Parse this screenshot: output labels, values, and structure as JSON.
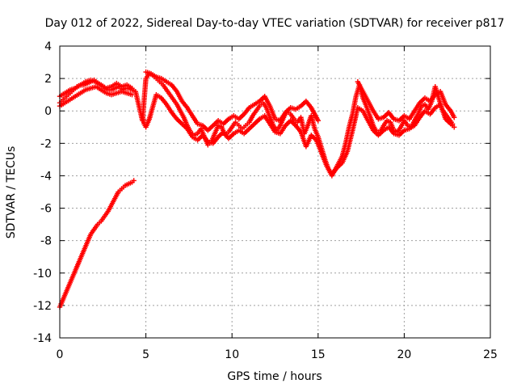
{
  "chart_data": {
    "type": "scatter",
    "title": "Day 012 of 2022, Sidereal Day-to-day VTEC variation (SDTVAR) for receiver p817",
    "xlabel": "GPS time / hours",
    "ylabel": "SDTVAR / TECUs",
    "xlim": [
      0,
      25
    ],
    "ylim": [
      -14,
      4
    ],
    "xticks": [
      "0",
      "5",
      "10",
      "15",
      "20",
      "25"
    ],
    "yticks": [
      "4",
      "2",
      "0",
      "-2",
      "-4",
      "-6",
      "-8",
      "-10",
      "-12",
      "-14"
    ],
    "grid": true,
    "marker": "+",
    "color": "#ff0000",
    "series": [
      {
        "name": "descending track",
        "points": [
          [
            0.0,
            -12.1
          ],
          [
            0.2,
            -11.6
          ],
          [
            0.4,
            -11.1
          ],
          [
            0.6,
            -10.6
          ],
          [
            0.8,
            -10.1
          ],
          [
            1.0,
            -9.6
          ],
          [
            1.2,
            -9.1
          ],
          [
            1.4,
            -8.6
          ],
          [
            1.6,
            -8.1
          ],
          [
            1.8,
            -7.6
          ],
          [
            2.0,
            -7.3
          ],
          [
            2.2,
            -7.0
          ],
          [
            2.4,
            -6.8
          ],
          [
            2.6,
            -6.5
          ],
          [
            2.8,
            -6.2
          ],
          [
            3.0,
            -5.8
          ],
          [
            3.2,
            -5.4
          ],
          [
            3.4,
            -5.0
          ],
          [
            3.6,
            -4.8
          ],
          [
            3.8,
            -4.6
          ],
          [
            4.0,
            -4.5
          ],
          [
            4.2,
            -4.4
          ],
          [
            4.3,
            -4.3
          ]
        ]
      },
      {
        "name": "main track",
        "points": [
          [
            0.0,
            0.5
          ],
          [
            0.2,
            0.7
          ],
          [
            0.4,
            0.9
          ],
          [
            0.6,
            1.1
          ],
          [
            0.8,
            1.3
          ],
          [
            1.0,
            1.5
          ],
          [
            1.2,
            1.6
          ],
          [
            1.4,
            1.6
          ],
          [
            1.6,
            1.7
          ],
          [
            1.8,
            1.8
          ],
          [
            2.0,
            1.9
          ],
          [
            2.2,
            1.7
          ],
          [
            2.4,
            1.6
          ],
          [
            2.6,
            1.4
          ],
          [
            2.8,
            1.3
          ],
          [
            3.0,
            1.3
          ],
          [
            3.2,
            1.4
          ],
          [
            3.4,
            1.5
          ],
          [
            3.6,
            1.3
          ],
          [
            3.8,
            1.4
          ],
          [
            4.0,
            1.4
          ],
          [
            4.2,
            1.3
          ],
          [
            4.4,
            1.2
          ],
          [
            4.8,
            -0.6
          ],
          [
            5.0,
            2.0
          ],
          [
            5.2,
            2.3
          ],
          [
            5.4,
            2.2
          ],
          [
            5.6,
            2.0
          ],
          [
            5.8,
            1.8
          ],
          [
            6.0,
            1.6
          ],
          [
            6.2,
            1.3
          ],
          [
            6.4,
            1.0
          ],
          [
            6.6,
            0.7
          ],
          [
            6.8,
            0.4
          ],
          [
            7.0,
            0.0
          ],
          [
            7.2,
            -0.4
          ],
          [
            7.4,
            -0.9
          ],
          [
            7.6,
            -1.3
          ],
          [
            7.8,
            -1.5
          ],
          [
            8.0,
            -1.4
          ],
          [
            8.2,
            -1.1
          ],
          [
            8.4,
            -1.6
          ],
          [
            8.6,
            -2.1
          ],
          [
            8.8,
            -1.9
          ],
          [
            9.0,
            -1.4
          ],
          [
            9.2,
            -0.9
          ],
          [
            9.4,
            -1.0
          ],
          [
            9.6,
            -1.5
          ],
          [
            9.8,
            -1.3
          ],
          [
            10.0,
            -1.0
          ],
          [
            10.2,
            -0.7
          ],
          [
            10.4,
            -0.9
          ],
          [
            10.6,
            -1.1
          ],
          [
            10.8,
            -0.9
          ],
          [
            11.0,
            -0.7
          ],
          [
            11.2,
            -0.3
          ],
          [
            11.4,
            0.0
          ],
          [
            11.6,
            0.3
          ],
          [
            11.8,
            0.5
          ],
          [
            12.0,
            0.2
          ],
          [
            12.2,
            -0.4
          ],
          [
            12.4,
            -0.9
          ],
          [
            12.6,
            -1.2
          ],
          [
            12.8,
            -0.9
          ],
          [
            13.0,
            -0.4
          ],
          [
            13.2,
            0.0
          ],
          [
            13.4,
            -0.2
          ],
          [
            13.6,
            -0.5
          ],
          [
            13.8,
            -0.7
          ],
          [
            14.0,
            -0.4
          ],
          [
            14.2,
            -1.4
          ],
          [
            14.4,
            -0.9
          ],
          [
            14.6,
            -0.3
          ],
          [
            14.8,
            -1.1
          ],
          [
            15.0,
            -1.6
          ],
          [
            15.2,
            -2.3
          ],
          [
            15.4,
            -3.0
          ],
          [
            15.6,
            -3.6
          ],
          [
            15.8,
            -4.0
          ],
          [
            16.0,
            -3.6
          ],
          [
            16.2,
            -3.2
          ],
          [
            16.4,
            -2.8
          ],
          [
            16.6,
            -2.0
          ],
          [
            16.8,
            -1.0
          ],
          [
            17.0,
            -0.2
          ],
          [
            17.2,
            0.9
          ],
          [
            17.4,
            1.6
          ],
          [
            17.6,
            0.8
          ],
          [
            17.8,
            0.3
          ],
          [
            18.0,
            -0.3
          ],
          [
            18.2,
            -0.9
          ],
          [
            18.4,
            -1.3
          ],
          [
            18.6,
            -1.3
          ],
          [
            18.8,
            -0.9
          ],
          [
            19.0,
            -0.6
          ],
          [
            19.2,
            -0.7
          ],
          [
            19.4,
            -1.2
          ],
          [
            19.6,
            -1.3
          ],
          [
            19.8,
            -1.0
          ],
          [
            20.0,
            -0.6
          ],
          [
            20.2,
            -0.9
          ],
          [
            20.4,
            -1.0
          ],
          [
            20.6,
            -0.6
          ],
          [
            20.8,
            -0.2
          ],
          [
            21.0,
            0.3
          ],
          [
            21.2,
            0.4
          ],
          [
            21.4,
            0.1
          ],
          [
            21.6,
            0.6
          ],
          [
            21.8,
            1.5
          ],
          [
            22.0,
            0.8
          ],
          [
            22.2,
            0.1
          ],
          [
            22.4,
            -0.2
          ],
          [
            22.6,
            -0.5
          ],
          [
            22.8,
            -0.8
          ]
        ]
      },
      {
        "name": "upper secondary track",
        "points": [
          [
            0.0,
            0.9
          ],
          [
            0.3,
            1.1
          ],
          [
            0.6,
            1.3
          ],
          [
            0.9,
            1.4
          ],
          [
            1.2,
            1.6
          ],
          [
            1.5,
            1.8
          ],
          [
            1.8,
            1.9
          ],
          [
            2.1,
            1.8
          ],
          [
            2.4,
            1.6
          ],
          [
            2.7,
            1.4
          ],
          [
            3.0,
            1.5
          ],
          [
            3.3,
            1.7
          ],
          [
            3.6,
            1.5
          ],
          [
            3.9,
            1.6
          ],
          [
            4.2,
            1.4
          ],
          [
            5.0,
            2.4
          ],
          [
            5.3,
            2.3
          ],
          [
            5.6,
            2.1
          ],
          [
            5.9,
            2.0
          ],
          [
            6.2,
            1.8
          ],
          [
            6.5,
            1.6
          ],
          [
            6.8,
            1.2
          ],
          [
            7.1,
            0.6
          ],
          [
            7.4,
            0.2
          ],
          [
            7.7,
            -0.3
          ],
          [
            8.0,
            -0.8
          ],
          [
            8.3,
            -0.9
          ],
          [
            8.6,
            -1.2
          ],
          [
            8.9,
            -0.9
          ],
          [
            9.2,
            -0.6
          ],
          [
            9.5,
            -0.8
          ],
          [
            9.8,
            -0.5
          ],
          [
            10.1,
            -0.3
          ],
          [
            10.4,
            -0.5
          ],
          [
            10.7,
            -0.2
          ],
          [
            11.0,
            0.2
          ],
          [
            11.3,
            0.4
          ],
          [
            11.6,
            0.6
          ],
          [
            11.9,
            0.9
          ],
          [
            12.2,
            0.3
          ],
          [
            12.5,
            -0.5
          ],
          [
            12.8,
            -0.6
          ],
          [
            13.1,
            -0.1
          ],
          [
            13.4,
            0.2
          ],
          [
            13.7,
            0.1
          ],
          [
            14.0,
            0.3
          ],
          [
            14.3,
            0.6
          ],
          [
            14.6,
            0.2
          ],
          [
            15.0,
            -0.6
          ],
          [
            17.3,
            1.8
          ],
          [
            17.6,
            1.2
          ],
          [
            17.9,
            0.6
          ],
          [
            18.2,
            0.0
          ],
          [
            18.5,
            -0.5
          ],
          [
            18.8,
            -0.4
          ],
          [
            19.1,
            -0.1
          ],
          [
            19.4,
            -0.5
          ],
          [
            19.7,
            -0.6
          ],
          [
            20.0,
            -0.3
          ],
          [
            20.3,
            -0.5
          ],
          [
            20.6,
            0.0
          ],
          [
            20.9,
            0.5
          ],
          [
            21.2,
            0.8
          ],
          [
            21.5,
            0.6
          ],
          [
            21.8,
            1.0
          ],
          [
            22.1,
            1.2
          ],
          [
            22.4,
            0.4
          ],
          [
            22.7,
            0.0
          ],
          [
            22.9,
            -0.4
          ]
        ]
      },
      {
        "name": "lower secondary track",
        "points": [
          [
            0.0,
            0.3
          ],
          [
            0.3,
            0.5
          ],
          [
            0.6,
            0.7
          ],
          [
            0.9,
            0.9
          ],
          [
            1.2,
            1.1
          ],
          [
            1.5,
            1.3
          ],
          [
            1.8,
            1.4
          ],
          [
            2.1,
            1.5
          ],
          [
            2.4,
            1.3
          ],
          [
            2.7,
            1.1
          ],
          [
            3.0,
            1.0
          ],
          [
            3.3,
            1.1
          ],
          [
            3.6,
            1.2
          ],
          [
            3.9,
            1.1
          ],
          [
            4.2,
            1.0
          ],
          [
            4.8,
            -0.3
          ],
          [
            4.9,
            -0.8
          ],
          [
            5.0,
            -1.0
          ],
          [
            5.2,
            -0.5
          ],
          [
            5.6,
            1.0
          ],
          [
            5.9,
            0.8
          ],
          [
            6.2,
            0.4
          ],
          [
            6.5,
            -0.1
          ],
          [
            6.8,
            -0.5
          ],
          [
            7.1,
            -0.8
          ],
          [
            7.4,
            -1.1
          ],
          [
            7.7,
            -1.6
          ],
          [
            8.0,
            -1.8
          ],
          [
            8.3,
            -1.5
          ],
          [
            8.6,
            -1.9
          ],
          [
            8.9,
            -2.0
          ],
          [
            9.2,
            -1.6
          ],
          [
            9.5,
            -1.3
          ],
          [
            9.8,
            -1.7
          ],
          [
            10.1,
            -1.4
          ],
          [
            10.4,
            -1.2
          ],
          [
            10.7,
            -1.4
          ],
          [
            11.0,
            -1.1
          ],
          [
            11.3,
            -0.8
          ],
          [
            11.6,
            -0.5
          ],
          [
            11.9,
            -0.3
          ],
          [
            12.2,
            -0.8
          ],
          [
            12.5,
            -1.3
          ],
          [
            12.8,
            -1.4
          ],
          [
            13.1,
            -0.9
          ],
          [
            13.4,
            -0.6
          ],
          [
            13.7,
            -0.9
          ],
          [
            14.0,
            -1.3
          ],
          [
            14.3,
            -2.2
          ],
          [
            14.6,
            -1.5
          ],
          [
            14.9,
            -1.8
          ],
          [
            15.2,
            -2.6
          ],
          [
            15.5,
            -3.4
          ],
          [
            15.8,
            -3.9
          ],
          [
            16.1,
            -3.5
          ],
          [
            16.4,
            -3.2
          ],
          [
            16.7,
            -2.5
          ],
          [
            17.0,
            -1.2
          ],
          [
            17.3,
            0.2
          ],
          [
            17.6,
            0.0
          ],
          [
            17.9,
            -0.6
          ],
          [
            18.2,
            -1.2
          ],
          [
            18.5,
            -1.5
          ],
          [
            18.8,
            -1.2
          ],
          [
            19.1,
            -1.0
          ],
          [
            19.4,
            -1.4
          ],
          [
            19.7,
            -1.5
          ],
          [
            20.0,
            -1.2
          ],
          [
            20.3,
            -1.1
          ],
          [
            20.6,
            -0.9
          ],
          [
            20.9,
            -0.4
          ],
          [
            21.2,
            0.0
          ],
          [
            21.5,
            -0.2
          ],
          [
            21.8,
            0.2
          ],
          [
            22.1,
            0.4
          ],
          [
            22.4,
            -0.5
          ],
          [
            22.7,
            -0.8
          ],
          [
            22.9,
            -1.0
          ]
        ]
      }
    ]
  }
}
